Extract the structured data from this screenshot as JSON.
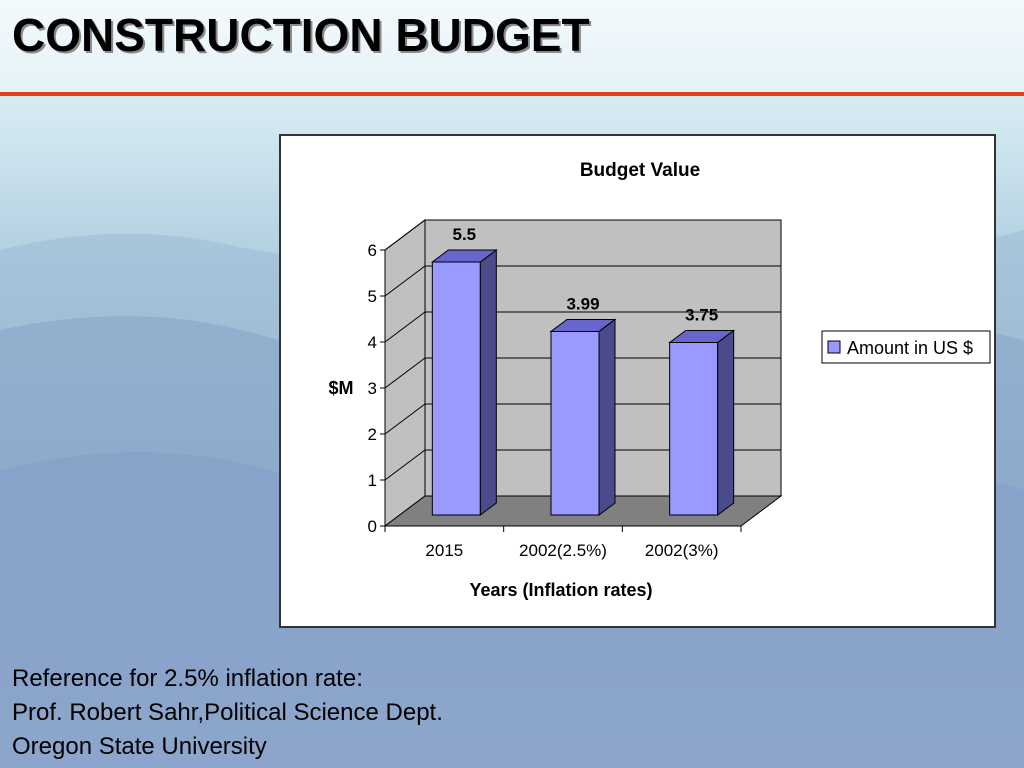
{
  "slide": {
    "title": "CONSTRUCTION BUDGET",
    "accent_color": "#e0401a"
  },
  "chart_data": {
    "type": "bar",
    "style": "3d-column",
    "title": "Budget Value",
    "xlabel": "Years (Inflation rates)",
    "ylabel": "$M",
    "ylim": [
      0,
      6
    ],
    "yticks": [
      "0",
      "1",
      "2",
      "3",
      "4",
      "5",
      "6"
    ],
    "categories": [
      "2015",
      "2002(2.5%)",
      "2002(3%)"
    ],
    "series": [
      {
        "name": "Amount in US $",
        "values": [
          5.5,
          3.99,
          3.75
        ],
        "labels": [
          "5.5",
          "3.99",
          "3.75"
        ],
        "color": "#9999ff",
        "side_color": "#4b4b8c",
        "top_color": "#6666cc"
      }
    ],
    "grid": true,
    "legend_position": "right",
    "wall_color": "#c0c0c0",
    "floor_color": "#808080"
  },
  "footnote": {
    "lines": [
      "Reference for 2.5% inflation rate:",
      "Prof. Robert Sahr,Political Science Dept.",
      "Oregon State University"
    ]
  }
}
